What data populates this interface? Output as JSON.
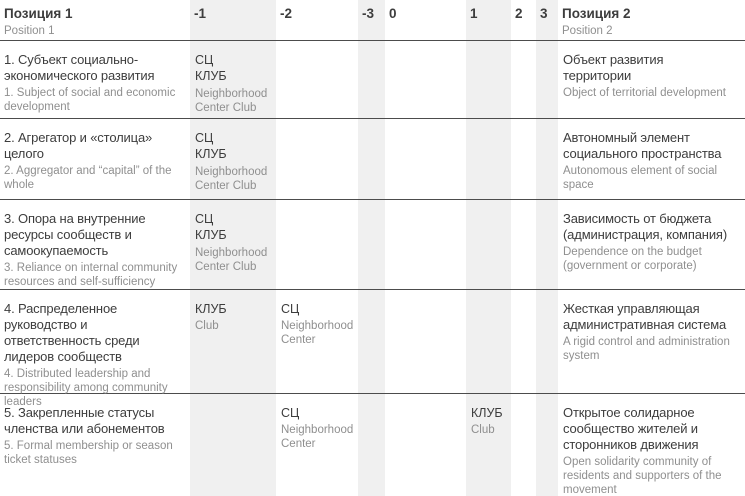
{
  "header": {
    "pos1_title": "Позиция 1",
    "pos1_subtitle": "Position 1",
    "scale": [
      "-1",
      "-2",
      "-3",
      "0",
      "1",
      "2",
      "3"
    ],
    "pos2_title": "Позиция 2",
    "pos2_subtitle": "Position 2"
  },
  "colors": {
    "stripe": "#f0f0f0",
    "text_dark": "#3d3d3d",
    "text_gray": "#8f8f8f",
    "separator": "#4c4c4c"
  },
  "rows": [
    {
      "left_ru": "1. Субъект социально-экономического развития",
      "left_en": "1. Subject of social and economic development",
      "right_ru": "Объект развития территории",
      "right_en": "Object of territorial development",
      "markers": {
        "a": {
          "column": "-1",
          "line1": "СЦ",
          "line2": "КЛУБ",
          "sub": "Neighborhood Center Club"
        }
      }
    },
    {
      "left_ru": "2. Агрегатор и «столица» целого",
      "left_en": "2. Aggregator and “capital” of the whole",
      "right_ru": "Автономный элемент социального пространства",
      "right_en": "Autonomous element of social space",
      "markers": {
        "a": {
          "column": "-1",
          "line1": "СЦ",
          "line2": "КЛУБ",
          "sub": "Neighborhood Center Club"
        }
      }
    },
    {
      "left_ru": "3. Опора на внутренние ресурсы сообществ и самоокупаемость",
      "left_en": "3. Reliance on internal community resources and self-sufficiency",
      "right_ru": "Зависимость от бюджета (администрация, компания)",
      "right_en": "Dependence on the budget (government or corporate)",
      "markers": {
        "a": {
          "column": "-1",
          "line1": "СЦ",
          "line2": "КЛУБ",
          "sub": "Neighborhood Center Club"
        }
      }
    },
    {
      "left_ru": "4. Распределенное руководство и ответственность среди лидеров сообществ",
      "left_en": "4. Distributed leadership and responsibility among community leaders",
      "right_ru": "Жесткая управляющая административная система",
      "right_en": "A rigid control and administration system",
      "markers": {
        "a": {
          "column": "-1",
          "line1": "КЛУБ",
          "sub": "Club"
        },
        "b": {
          "column": "-2",
          "line1": "СЦ",
          "sub": "Neighborhood Center"
        }
      }
    },
    {
      "left_ru": "5. Закрепленные статусы членства или абонементов",
      "left_en": "5. Formal membership or season ticket statuses",
      "right_ru": "Открытое солидарное сообщество жителей и сторонников движения",
      "right_en": "Open solidarity community of residents and supporters of the movement",
      "markers": {
        "a": {
          "column": "-2",
          "line1": "СЦ",
          "sub": "Neighborhood Center"
        },
        "b": {
          "column": "1",
          "line1": "КЛУБ",
          "sub": "Club"
        }
      }
    }
  ]
}
